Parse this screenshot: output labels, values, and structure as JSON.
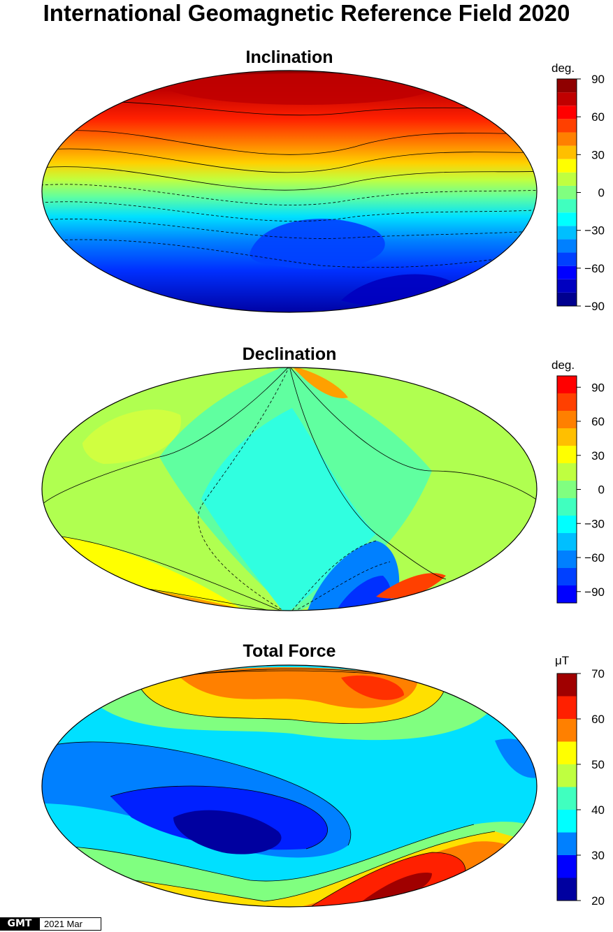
{
  "title": "International Geomagnetic Reference Field 2020",
  "panels": [
    {
      "id": "inclination",
      "title": "Inclination",
      "unit": "deg.",
      "ticks": [
        "90",
        "60",
        "30",
        "0",
        "−30",
        "−60",
        "−90"
      ],
      "range": [
        -90,
        90
      ],
      "colors": [
        "#00008f",
        "#0000c0",
        "#0000ff",
        "#0040ff",
        "#0080ff",
        "#00bfff",
        "#00ffff",
        "#40ffbf",
        "#80ff80",
        "#bfff40",
        "#ffff00",
        "#ffbf00",
        "#ff8000",
        "#ff4000",
        "#ff0000",
        "#c00000",
        "#8f0000"
      ]
    },
    {
      "id": "declination",
      "title": "Declination",
      "unit": "deg.",
      "ticks": [
        "90",
        "60",
        "30",
        "0",
        "−30",
        "−60",
        "−90"
      ],
      "range": [
        -100,
        100
      ],
      "colors": [
        "#0000ff",
        "#0040ff",
        "#0080ff",
        "#00bfff",
        "#00ffff",
        "#40ffbf",
        "#80ff80",
        "#bfff40",
        "#ffff00",
        "#ffbf00",
        "#ff8000",
        "#ff4000",
        "#ff0000"
      ]
    },
    {
      "id": "totalforce",
      "title": "Total Force",
      "unit": "μT",
      "ticks": [
        "70",
        "60",
        "50",
        "40",
        "30",
        "20"
      ],
      "range": [
        20,
        70
      ],
      "colors": [
        "#0000a0",
        "#0000ff",
        "#0080ff",
        "#00ffff",
        "#40ffbf",
        "#bfff40",
        "#ffff00",
        "#ff8000",
        "#ff2000",
        "#a00000"
      ]
    }
  ],
  "footer": {
    "logo": "GMT",
    "date": "2021 Mar"
  }
}
